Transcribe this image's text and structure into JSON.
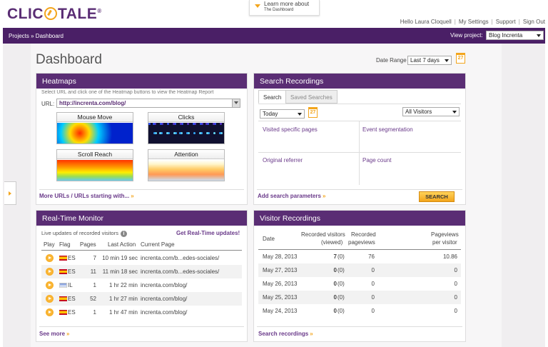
{
  "header": {
    "logo": {
      "left": "CLIC",
      "right": "TALE",
      "trademark": "®"
    },
    "promo": {
      "line1": "Learn more about",
      "line2": "The Dashboard"
    },
    "user_nav": [
      "Hello Laura Cloquell",
      "My Settings",
      "Support",
      "Sign Out"
    ]
  },
  "nav": {
    "breadcrumb": "Projects » Dashboard",
    "view_project_label": "View project:",
    "project_selected": "Blog Increnta"
  },
  "page": {
    "title": "Dashboard",
    "date_range_label": "Date Range",
    "date_range_value": "Last 7 days",
    "calendar_day": "27"
  },
  "heatmaps": {
    "title": "Heatmaps",
    "instructions": "Select URL and click one of the Heatmap buttons to view the Heatmap Report",
    "url_label": "URL:",
    "url_value": "http://increnta.com/blog/",
    "buttons": [
      "Mouse Move",
      "Clicks",
      "Scroll Reach",
      "Attention"
    ],
    "more_link": "More URLs / URLs starting with...",
    "chevron": "»"
  },
  "search_recordings": {
    "title": "Search Recordings",
    "tabs": [
      "Search",
      "Saved Searches"
    ],
    "when_value": "Today",
    "calendar_day": "27",
    "visitors_value": "All Visitors",
    "criteria": [
      "Visited specific pages",
      "Event segmentation",
      "Original referrer",
      "Page count"
    ],
    "add_params": "Add search parameters",
    "search_button": "SEARCH",
    "chevron": "»"
  },
  "realtime": {
    "title": "Real-Time Monitor",
    "subtitle": "Live updates of recorded visitors",
    "info": "i",
    "update_link": "Get Real-Time updates!",
    "columns": [
      "Play",
      "Flag",
      "Pages",
      "Last Action",
      "Current Page"
    ],
    "rows": [
      {
        "flag": "ES",
        "pages": "7",
        "last_action": "10 min 19 sec",
        "page": "increnta.com/b...edes-sociales/"
      },
      {
        "flag": "ES",
        "pages": "11",
        "last_action": "11 min 18 sec",
        "page": "increnta.com/b...edes-sociales/"
      },
      {
        "flag": "IL",
        "pages": "1",
        "last_action": "1 hr 22 min",
        "page": "increnta.com/blog/"
      },
      {
        "flag": "ES",
        "pages": "52",
        "last_action": "1 hr 27 min",
        "page": "increnta.com/blog/"
      },
      {
        "flag": "ES",
        "pages": "1",
        "last_action": "1 hr 47 min",
        "page": "increnta.com/blog/"
      }
    ],
    "more_link": "See more",
    "chevron": "»"
  },
  "visitor_recordings": {
    "title": "Visitor Recordings",
    "columns": {
      "date": "Date",
      "recorded_visitors_l1": "Recorded visitors",
      "recorded_visitors_l2": "(viewed)",
      "recorded_pageviews_l1": "Recorded",
      "recorded_pageviews_l2": "pageviews",
      "pageviews_per_visitor_l1": "Pageviews",
      "pageviews_per_visitor_l2": "per visitor"
    },
    "rows": [
      {
        "date": "May 28, 2013",
        "visitors": "7",
        "viewed": "(0)",
        "pageviews": "76",
        "per_visitor": "10.86"
      },
      {
        "date": "May 27, 2013",
        "visitors": "0",
        "viewed": "(0)",
        "pageviews": "0",
        "per_visitor": "0"
      },
      {
        "date": "May 26, 2013",
        "visitors": "0",
        "viewed": "(0)",
        "pageviews": "0",
        "per_visitor": "0"
      },
      {
        "date": "May 25, 2013",
        "visitors": "0",
        "viewed": "(0)",
        "pageviews": "0",
        "per_visitor": "0"
      },
      {
        "date": "May 24, 2013",
        "visitors": "0",
        "viewed": "(0)",
        "pageviews": "0",
        "per_visitor": "0"
      }
    ],
    "more_link": "Search recordings",
    "chevron": "»"
  },
  "colors": {
    "brand_purple": "#5a2d74",
    "nav_purple": "#4a1f66",
    "accent_orange": "#f3a51c",
    "link_purple": "#6a3a8a"
  },
  "icons": {
    "calendar": "calendar-icon",
    "play": "play-icon",
    "info": "info-icon",
    "flag_es": "spain-flag-icon",
    "flag_il": "israel-flag-icon"
  }
}
